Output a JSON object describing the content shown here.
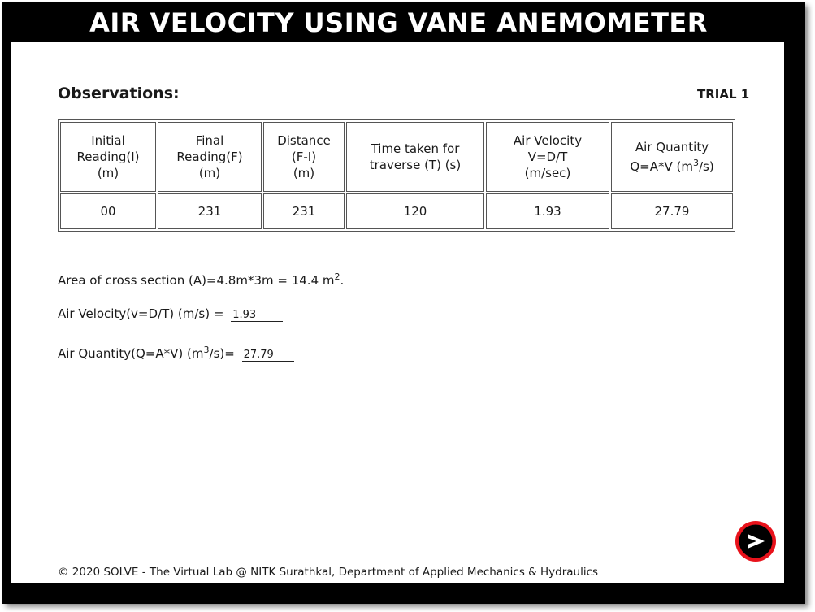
{
  "header": {
    "title": "AIR VELOCITY USING VANE ANEMOMETER"
  },
  "observations": {
    "heading": "Observations:",
    "trial_label": "TRIAL 1",
    "columns": [
      {
        "lines": [
          "Initial",
          "Reading(I)",
          "(m)"
        ]
      },
      {
        "lines": [
          "Final",
          "Reading(F)",
          "(m)"
        ]
      },
      {
        "lines": [
          "Distance",
          "(F-I)",
          "(m)"
        ]
      },
      {
        "lines": [
          "Time taken for",
          "traverse (T) (s)"
        ]
      },
      {
        "lines": [
          "Air Velocity",
          "V=D/T",
          "(m/sec)"
        ]
      },
      {
        "line1": "Air Quantity",
        "line2_pre": "Q=A*V (m",
        "line2_sup": "3",
        "line2_post": "/s)"
      }
    ],
    "row": [
      "00",
      "231",
      "231",
      "120",
      "1.93",
      "27.79"
    ]
  },
  "results": {
    "area_text": "Area of cross section (A)=4.8m*3m = 14.4 m",
    "area_sup": "2",
    "area_end": ".",
    "velocity_label": "Air Velocity(v=D/T) (m/s) =",
    "velocity_value": "1.93",
    "quantity_label_pre": "Air Quantity(Q=A*V) (m",
    "quantity_label_sup": "3",
    "quantity_label_post": "/s)=",
    "quantity_value": "27.79"
  },
  "footer": {
    "text": "© 2020 SOLVE - The Virtual Lab @ NITK Surathkal, Department of Applied Mechanics & Hydraulics"
  },
  "colors": {
    "frame": "#000000",
    "next_button_ring": "#e8121b",
    "next_button_fill": "#000000"
  },
  "icons": {
    "next": "arrow-right-icon"
  }
}
